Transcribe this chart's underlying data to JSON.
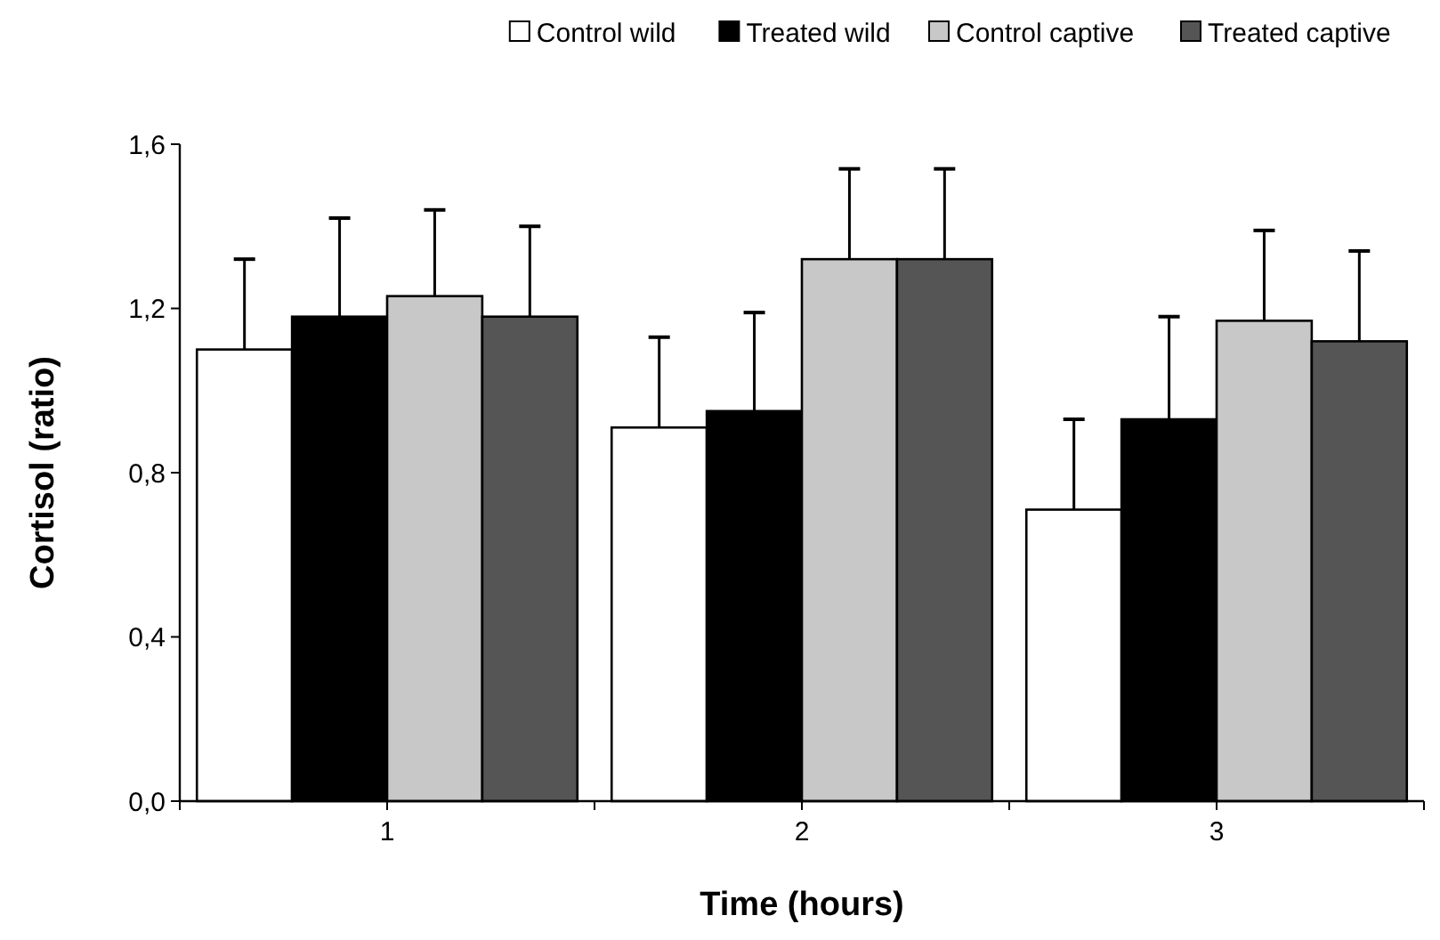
{
  "chart_data": {
    "type": "bar",
    "xlabel": "Time (hours)",
    "ylabel": "Cortisol (ratio)",
    "categories": [
      "1",
      "2",
      "3"
    ],
    "series": [
      {
        "name": "Control wild",
        "color": "#ffffff",
        "values": [
          1.1,
          0.91,
          0.71
        ],
        "errors": [
          [
            1.1,
            1.32
          ],
          [
            0.91,
            1.13
          ],
          [
            0.71,
            0.93
          ]
        ]
      },
      {
        "name": "Treated wild",
        "color": "#000000",
        "values": [
          1.18,
          0.95,
          0.93
        ],
        "errors": [
          [
            1.18,
            1.42
          ],
          [
            0.95,
            1.19
          ],
          [
            0.93,
            1.18
          ]
        ]
      },
      {
        "name": "Control captive",
        "color": "#c8c8c8",
        "values": [
          1.23,
          1.32,
          1.17
        ],
        "errors": [
          [
            1.23,
            1.44
          ],
          [
            1.32,
            1.54
          ],
          [
            1.17,
            1.39
          ]
        ]
      },
      {
        "name": "Treated captive",
        "color": "#555555",
        "values": [
          1.18,
          1.32,
          1.12
        ],
        "errors": [
          [
            1.18,
            1.4
          ],
          [
            1.32,
            1.54
          ],
          [
            1.12,
            1.34
          ]
        ]
      }
    ],
    "ylim": [
      0,
      1.6
    ],
    "yticks": [
      {
        "value": 0,
        "label": "0,0"
      },
      {
        "value": 0.4,
        "label": "0,4"
      },
      {
        "value": 0.8,
        "label": "0,8"
      },
      {
        "value": 1.2,
        "label": "1,2"
      },
      {
        "value": 1.6,
        "label": "1,6"
      }
    ],
    "grid": false,
    "legend": "top"
  }
}
